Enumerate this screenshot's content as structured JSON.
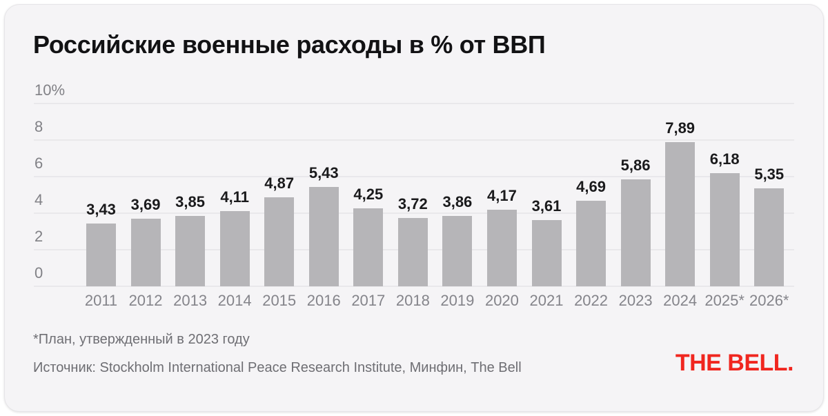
{
  "page": {
    "title": "Российские военные расходы в % от ВВП",
    "footnote": "*План, утвержденный в 2023 году",
    "source": "Источник: Stockholm International Peace Research Institute, Минфин, The Bell",
    "logo_text": "THE BELL.",
    "colors": {
      "card_background": "#f5f4f6",
      "bar": "#b6b5b8",
      "gridline": "#e9e8eb",
      "title_text": "#121214",
      "axis_text": "#84848a",
      "footnote_text": "#6e6e73",
      "logo_red": "#f0261f"
    }
  },
  "chart_data": {
    "type": "bar",
    "title": "Российские военные расходы в % от ВВП",
    "categories": [
      "2011",
      "2012",
      "2013",
      "2014",
      "2015",
      "2016",
      "2017",
      "2018",
      "2019",
      "2020",
      "2021",
      "2022",
      "2023",
      "2024",
      "2025*",
      "2026*"
    ],
    "values": [
      3.43,
      3.69,
      3.85,
      4.11,
      4.87,
      5.43,
      4.25,
      3.72,
      3.86,
      4.17,
      3.61,
      4.69,
      5.86,
      7.89,
      6.18,
      5.35
    ],
    "value_labels": [
      "3,43",
      "3,69",
      "3,85",
      "4,11",
      "4,87",
      "5,43",
      "4,25",
      "3,72",
      "3,86",
      "4,17",
      "3,61",
      "4,69",
      "5,86",
      "7,89",
      "6,18",
      "5,35"
    ],
    "yticks": [
      10,
      8,
      6,
      4,
      2,
      0
    ],
    "ytick_labels": [
      "10%",
      "8",
      "6",
      "4",
      "2",
      "0"
    ],
    "ylim": [
      0,
      10
    ],
    "grid": true,
    "legend": null,
    "xlabel": "",
    "ylabel": "",
    "bar_color": "#b6b5b8",
    "annotation_note": "*План, утвержденный в 2023 году"
  }
}
